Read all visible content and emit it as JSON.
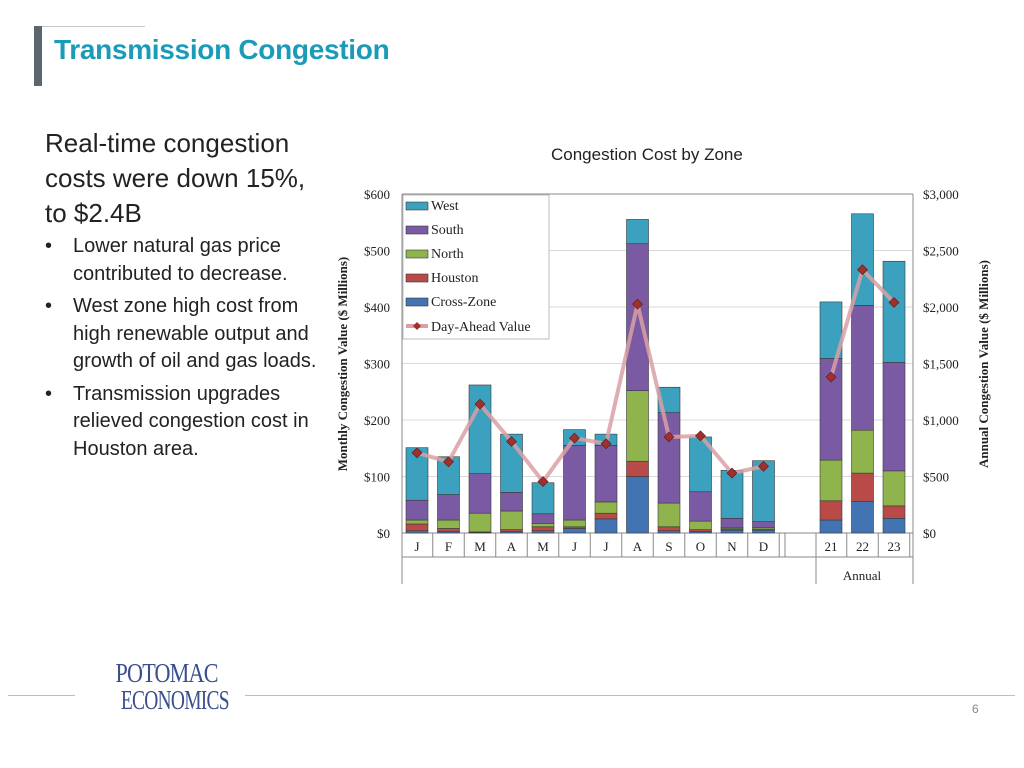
{
  "slide": {
    "title": "Transmission Congestion",
    "headline": "Real-time congestion costs were down 15%, to $2.4B",
    "bullets": [
      "Lower natural gas price contributed to decrease.",
      "West zone high cost from high renewable output and growth of oil and gas loads.",
      "Transmission upgrades relieved congestion cost in Houston area."
    ],
    "bullet_symbol": "•",
    "page_number": "6",
    "logo": {
      "line1": "POTOMAC",
      "line2": "ECONOMICS"
    }
  },
  "chart_data": {
    "type": "bar",
    "stacked": true,
    "title": "Congestion Cost by Zone",
    "ylabel": "Monthly Congestion Value ($ Millions)",
    "y2label": "Annual Congestion Value ($ Millions)",
    "ylim": [
      0,
      600
    ],
    "y2lim": [
      0,
      3000
    ],
    "yticks": [
      "$0",
      "$100",
      "$200",
      "$300",
      "$400",
      "$500",
      "$600"
    ],
    "y2ticks": [
      "$0",
      "$500",
      "$1,000",
      "$1,500",
      "$2,000",
      "$2,500",
      "$3,000"
    ],
    "monthly_categories": [
      "J",
      "F",
      "M",
      "A",
      "M",
      "J",
      "J",
      "A",
      "S",
      "O",
      "N",
      "D"
    ],
    "annual_categories": [
      "21",
      "22",
      "23"
    ],
    "annual_group_label": "Annual",
    "series": [
      {
        "name": "West",
        "color": "#3ba1bf",
        "monthly": [
          93,
          67,
          157,
          103,
          55,
          28,
          20,
          43,
          45,
          97,
          85,
          108
        ],
        "annual": [
          500,
          810,
          895
        ]
      },
      {
        "name": "South",
        "color": "#7a5aa3",
        "monthly": [
          35,
          45,
          70,
          33,
          17,
          132,
          100,
          260,
          160,
          52,
          17,
          10
        ],
        "annual": [
          900,
          1105,
          960
        ]
      },
      {
        "name": "North",
        "color": "#8fb34d",
        "monthly": [
          7,
          15,
          33,
          33,
          6,
          12,
          20,
          125,
          42,
          15,
          2,
          3
        ],
        "annual": [
          360,
          380,
          310
        ]
      },
      {
        "name": "Houston",
        "color": "#b84a47",
        "monthly": [
          12,
          5,
          1,
          3,
          7,
          3,
          10,
          27,
          7,
          3,
          2,
          2
        ],
        "annual": [
          170,
          250,
          110
        ]
      },
      {
        "name": "Cross-Zone",
        "color": "#4273b3",
        "monthly": [
          4,
          3,
          1,
          3,
          4,
          8,
          25,
          100,
          4,
          3,
          5,
          5
        ],
        "annual": [
          115,
          280,
          130
        ]
      }
    ],
    "day_ahead": {
      "name": "Day-Ahead Value",
      "line_color": "#d9a0a5",
      "marker_color": "#a0302d",
      "monthly": [
        142,
        126,
        228,
        162,
        91,
        168,
        158,
        405,
        170,
        172,
        106,
        118
      ],
      "annual": [
        1380,
        2330,
        2040
      ]
    }
  }
}
